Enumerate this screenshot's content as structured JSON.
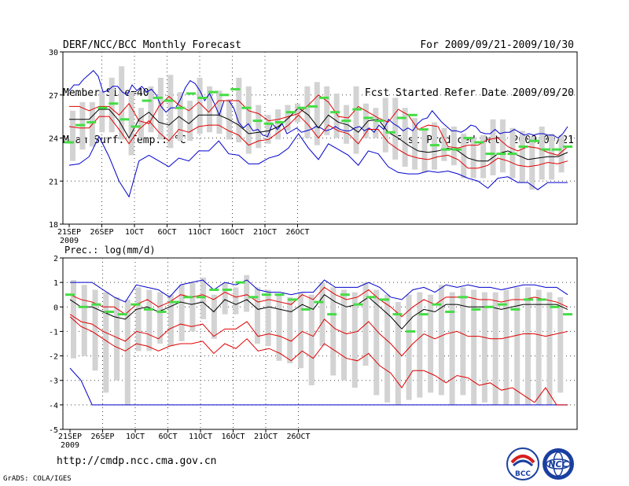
{
  "header": {
    "title": "DERF/NCC/BCC Monthly Forecast",
    "member_size": "Member Size=40",
    "variable": "Mean Surf. Temp.: °C",
    "period": "For 2009/09/21-2009/10/30",
    "refer_date": "Fcst Started Refer Date 2009/09/20",
    "produced_date": "Fcst Produced Date 2009/09/21"
  },
  "footer": {
    "url": "http://cmdp.ncc.cma.gov.cn",
    "credit": "GrADS: COLA/IGES",
    "logo1": "BCC",
    "logo2": "NCC"
  },
  "colors": {
    "box": "#d3d3d3",
    "mean": "#000000",
    "spread": "#e00000",
    "envelope": "#0000cc",
    "marker": "#44dd44",
    "grid": "#444444"
  },
  "chart_data": [
    {
      "type": "line",
      "title": "Mean Surf. Temp.: °C",
      "ylim": [
        18,
        30
      ],
      "yticks": [
        18,
        21,
        24,
        27,
        30
      ],
      "x_start": "2009/09/21",
      "xtick_labels": [
        "21SEP",
        "26SEP",
        "1OCT",
        "6OCT",
        "11OCT",
        "16OCT",
        "21OCT",
        "26OCT"
      ],
      "xtick_year": "2009",
      "series": [
        {
          "name": "max",
          "values": [
            27.3,
            27.7,
            27.7,
            28.1,
            28.4,
            28.7,
            28.3,
            27.2,
            27.3,
            27.6,
            27.6,
            27.2,
            27.0,
            27.7,
            27.3,
            27.6,
            27.2,
            27.4,
            27.0,
            26.2,
            25.8,
            26.1,
            26.1,
            26.7,
            27.5,
            28.0,
            27.8,
            27.3,
            26.6,
            27.1,
            26.4,
            25.6,
            26.6,
            26.6,
            26.1,
            25.1,
            24.7,
            25.0,
            24.5,
            24.6,
            24.2,
            24.1,
            25.0,
            24.6,
            25.0,
            24.3,
            24.5,
            24.7,
            24.4,
            24.5,
            24.6,
            24.8,
            24.7,
            24.5,
            24.6,
            24.8,
            24.6,
            24.5,
            24.5,
            24.7,
            24.8,
            24.5,
            24.7,
            24.4,
            24.9,
            24.6,
            25.3,
            25.0,
            24.8,
            24.5,
            24.7,
            24.5,
            25.0,
            25.3,
            25.4,
            25.9,
            25.5,
            25.1,
            24.8,
            24.5,
            24.5,
            24.4,
            24.6,
            24.9,
            24.8,
            24.4,
            24.3,
            24.3,
            24.6,
            24.3,
            24.4,
            24.4,
            24.6,
            24.4,
            24.2,
            24.3,
            24.2,
            24.3,
            24.3,
            24.2,
            24.2,
            24.0,
            24.3,
            24.8
          ]
        },
        {
          "name": "upper",
          "values": [
            26.2,
            26.2,
            25.9,
            26.2,
            26.2,
            25.6,
            26.4,
            25.2,
            25.0,
            26.2,
            26.9,
            26.3,
            25.9,
            26.5,
            25.8,
            26.6,
            26.6,
            26.6,
            25.9,
            25.7,
            25.2,
            25.3,
            25.5,
            25.7,
            26.3,
            27.0,
            26.5,
            25.5,
            25.4,
            26.2,
            25.8,
            25.4,
            25.1,
            26.0,
            25.6,
            24.6,
            24.9,
            24.8,
            23.4,
            23.3,
            23.5,
            23.5,
            23.9,
            24.0,
            23.4,
            23.1,
            23.4,
            23.3,
            23.0,
            22.8,
            23.4
          ]
        },
        {
          "name": "mean",
          "values": [
            25.3,
            25.3,
            25.3,
            26.0,
            26.0,
            25.2,
            24.0,
            25.3,
            25.8,
            25.1,
            24.9,
            25.5,
            25.0,
            25.6,
            25.6,
            25.6,
            25.3,
            24.9,
            24.3,
            24.4,
            24.5,
            24.8,
            25.4,
            26.1,
            25.6,
            24.7,
            25.6,
            25.1,
            24.9,
            24.4,
            25.2,
            25.3,
            24.4,
            24.0,
            23.5,
            23.1,
            23.0,
            23.1,
            23.3,
            23.1,
            22.6,
            22.4,
            22.4,
            22.9,
            23.1,
            22.8,
            22.5,
            22.6,
            22.7,
            22.7,
            23.0
          ]
        },
        {
          "name": "lower",
          "values": [
            24.8,
            24.7,
            24.7,
            25.5,
            25.5,
            24.6,
            23.6,
            24.6,
            25.2,
            24.4,
            23.8,
            24.6,
            24.4,
            24.8,
            24.9,
            24.9,
            24.5,
            24.2,
            23.5,
            23.8,
            23.9,
            24.4,
            24.9,
            25.6,
            24.9,
            24.0,
            24.9,
            24.5,
            24.3,
            23.6,
            24.6,
            24.6,
            23.7,
            23.2,
            22.8,
            22.6,
            22.5,
            22.7,
            22.8,
            22.5,
            21.9,
            21.9,
            22.1,
            22.6,
            22.4,
            22.1,
            22.0,
            22.1,
            22.3,
            22.2,
            22.4
          ]
        },
        {
          "name": "min",
          "values": [
            22.1,
            22.2,
            22.7,
            24.1,
            22.7,
            21.0,
            19.9,
            22.4,
            22.8,
            22.4,
            22.0,
            22.6,
            22.4,
            23.1,
            23.1,
            23.8,
            22.9,
            22.8,
            22.2,
            22.2,
            22.6,
            22.8,
            23.3,
            24.3,
            23.3,
            22.5,
            23.6,
            23.2,
            22.8,
            22.1,
            23.1,
            22.9,
            22.0,
            21.6,
            21.5,
            21.5,
            21.7,
            21.6,
            21.7,
            21.5,
            21.2,
            21.0,
            20.5,
            21.2,
            21.3,
            20.9,
            20.9,
            20.4,
            20.9,
            20.9,
            20.9
          ]
        },
        {
          "name": "box_top",
          "values": [
            25.9,
            26.5,
            26.5,
            27.3,
            28.2,
            29.0,
            27.2,
            26.1,
            27.6,
            28.2,
            28.4,
            27.2,
            26.6,
            28.2,
            27.6,
            27.3,
            26.7,
            28.2,
            27.6,
            26.3,
            25.6,
            26.0,
            26.3,
            26.4,
            27.6,
            27.9,
            27.6,
            27.1,
            26.3,
            27.6,
            26.4,
            26.1,
            26.8,
            26.8,
            26.1,
            25.4,
            24.6,
            25.1,
            24.7,
            24.8,
            24.3,
            24.0,
            24.2,
            25.3,
            25.3,
            24.7,
            24.5,
            24.1,
            24.8,
            24.3,
            24.2
          ]
        },
        {
          "name": "box_bottom",
          "values": [
            22.4,
            23.2,
            23.4,
            24.4,
            24.4,
            23.9,
            22.8,
            24.0,
            24.4,
            23.9,
            23.3,
            23.8,
            23.8,
            24.3,
            24.4,
            24.3,
            23.9,
            23.7,
            22.9,
            23.3,
            23.6,
            23.9,
            24.5,
            25.1,
            24.0,
            23.5,
            24.2,
            24.0,
            23.6,
            22.9,
            24.0,
            24.0,
            23.0,
            22.5,
            22.0,
            21.8,
            21.6,
            21.8,
            22.4,
            22.1,
            21.2,
            21.2,
            21.2,
            21.4,
            21.6,
            21.2,
            20.9,
            20.4,
            21.1,
            21.1,
            21.6
          ]
        },
        {
          "name": "ensemble_marker",
          "values": [
            23.7,
            24.9,
            25.1,
            26.1,
            26.4,
            25.3,
            24.8,
            26.6,
            26.8,
            26.6,
            26.1,
            27.1,
            26.8,
            27.2,
            27.0,
            27.4,
            26.1,
            25.2,
            25.0,
            25.1,
            25.8,
            26.1,
            26.2,
            26.8,
            25.8,
            25.2,
            26.0,
            25.4,
            25.2,
            24.4,
            25.4,
            25.6,
            24.6,
            23.5,
            23.2,
            23.2,
            24.0,
            23.7,
            22.9,
            22.9,
            22.9,
            23.4,
            23.8,
            23.2,
            23.2,
            23.4
          ]
        }
      ]
    },
    {
      "type": "line",
      "title": "Prec.: log(mm/d)",
      "ylim": [
        -5,
        2
      ],
      "yticks": [
        -5,
        -4,
        -3,
        -2,
        -1,
        0,
        1,
        2
      ],
      "x_start": "2009/09/21",
      "xtick_labels": [
        "21SEP",
        "26SEP",
        "1OCT",
        "6OCT",
        "11OCT",
        "16OCT",
        "21OCT",
        "26OCT"
      ],
      "xtick_year": "2009",
      "series": [
        {
          "name": "max",
          "values": [
            1.0,
            1.0,
            1.0,
            0.7,
            0.4,
            0.2,
            0.9,
            0.8,
            0.7,
            0.4,
            0.9,
            1.0,
            1.1,
            0.7,
            1.0,
            0.9,
            1.1,
            0.7,
            0.6,
            0.6,
            0.5,
            0.6,
            0.6,
            1.1,
            0.8,
            0.8,
            0.8,
            1.0,
            0.8,
            0.4,
            0.3,
            0.7,
            0.8,
            0.6,
            0.9,
            0.8,
            0.9,
            0.8,
            0.8,
            0.7,
            0.8,
            0.9,
            0.9,
            0.8,
            0.8,
            0.5
          ]
        },
        {
          "name": "upper",
          "values": [
            0.5,
            0.3,
            0.2,
            0.0,
            0.0,
            -0.3,
            0.1,
            0.3,
            0.0,
            0.2,
            0.5,
            0.4,
            0.5,
            0.3,
            0.6,
            0.4,
            0.5,
            0.2,
            0.3,
            0.2,
            0.1,
            0.5,
            0.3,
            0.8,
            0.5,
            0.3,
            0.4,
            0.7,
            0.3,
            0.0,
            -0.4,
            0.0,
            0.3,
            0.1,
            0.4,
            0.4,
            0.4,
            0.3,
            0.3,
            0.2,
            0.3,
            0.3,
            0.4,
            0.3,
            0.2,
            0.0
          ]
        },
        {
          "name": "mean",
          "values": [
            0.3,
            0.0,
            0.0,
            -0.2,
            -0.4,
            -0.5,
            -0.1,
            0.0,
            -0.2,
            0.0,
            0.2,
            0.1,
            0.2,
            -0.2,
            0.3,
            0.1,
            0.3,
            -0.1,
            0.0,
            -0.1,
            -0.2,
            0.1,
            -0.1,
            0.5,
            0.2,
            0.0,
            0.1,
            0.4,
            0.0,
            -0.4,
            -0.9,
            -0.4,
            -0.1,
            -0.2,
            0.1,
            0.1,
            0.0,
            0.0,
            0.0,
            -0.1,
            0.0,
            0.1,
            0.1,
            0.1,
            0.1,
            -0.1
          ]
        },
        {
          "name": "lower",
          "values": [
            -0.3,
            -0.6,
            -0.7,
            -1.0,
            -1.2,
            -1.4,
            -1.0,
            -1.1,
            -1.3,
            -0.9,
            -0.7,
            -0.8,
            -0.7,
            -1.2,
            -0.9,
            -0.9,
            -0.6,
            -1.2,
            -1.1,
            -1.2,
            -1.4,
            -1.0,
            -1.2,
            -0.5,
            -0.9,
            -1.1,
            -1.0,
            -0.6,
            -1.1,
            -1.5,
            -2.0,
            -1.5,
            -1.1,
            -1.3,
            -1.1,
            -1.0,
            -1.2,
            -1.2,
            -1.3,
            -1.3,
            -1.2,
            -1.1,
            -1.1,
            -1.2,
            -1.1,
            -1.0
          ]
        },
        {
          "name": "lower2",
          "values": [
            -0.4,
            -0.8,
            -1.0,
            -1.3,
            -1.6,
            -1.8,
            -1.5,
            -1.6,
            -1.8,
            -1.6,
            -1.5,
            -1.5,
            -1.4,
            -1.9,
            -1.5,
            -1.7,
            -1.3,
            -1.8,
            -1.7,
            -1.9,
            -2.2,
            -1.8,
            -2.1,
            -1.5,
            -1.8,
            -2.1,
            -2.2,
            -1.9,
            -2.4,
            -2.7,
            -3.3,
            -2.6,
            -2.6,
            -2.8,
            -3.1,
            -2.8,
            -2.9,
            -3.2,
            -3.1,
            -3.4,
            -3.3,
            -3.6,
            -3.9,
            -3.3,
            -4.0,
            -4.0
          ]
        },
        {
          "name": "min",
          "values": [
            -2.5,
            -3.0,
            -4.0,
            -4.0,
            -4.0,
            -4.0,
            -4.0,
            -4.0,
            -4.0,
            -4.0,
            -4.0,
            -4.0,
            -4.0,
            -4.0,
            -4.0,
            -4.0,
            -4.0,
            -4.0,
            -4.0,
            -4.0,
            -4.0,
            -4.0,
            -4.0,
            -4.0,
            -4.0,
            -4.0,
            -4.0,
            -4.0,
            -4.0,
            -4.0,
            -4.0,
            -4.0,
            -4.0,
            -4.0,
            -4.0,
            -4.0,
            -4.0,
            -4.0,
            -4.0,
            -4.0,
            -4.0,
            -4.0,
            -4.0,
            -4.0,
            -4.0,
            -4.0
          ]
        },
        {
          "name": "box_top",
          "values": [
            1.1,
            0.9,
            0.7,
            0.6,
            0.4,
            0.3,
            0.8,
            0.7,
            0.6,
            0.5,
            0.9,
            1.0,
            1.2,
            0.5,
            1.0,
            0.8,
            1.3,
            0.8,
            0.7,
            0.5,
            0.4,
            0.6,
            0.5,
            1.0,
            0.8,
            0.7,
            0.6,
            1.0,
            0.7,
            0.5,
            0.2,
            0.5,
            0.6,
            0.5,
            0.9,
            0.6,
            0.8,
            0.7,
            0.6,
            0.6,
            0.7,
            0.8,
            0.8,
            0.7,
            0.6,
            0.4
          ]
        },
        {
          "name": "box_bottom",
          "values": [
            -2.1,
            -2.0,
            -2.6,
            -3.5,
            -3.0,
            -4.0,
            -1.8,
            -1.8,
            -1.5,
            -1.6,
            -1.4,
            -1.0,
            -0.5,
            -1.3,
            -0.3,
            -0.3,
            -0.2,
            -1.5,
            -1.6,
            -2.2,
            -2.3,
            -2.5,
            -3.2,
            -1.6,
            -2.8,
            -3.0,
            -3.3,
            -2.4,
            -3.6,
            -3.9,
            -4.0,
            -3.8,
            -3.7,
            -3.5,
            -3.6,
            -4.0,
            -3.6,
            -4.0,
            -3.9,
            -4.0,
            -4.0,
            -4.0,
            -4.0,
            -4.0,
            -4.0,
            -3.5
          ]
        },
        {
          "name": "ensemble_marker",
          "values": [
            0.5,
            0.0,
            0.1,
            -0.2,
            -0.3,
            0.1,
            -0.1,
            -0.2,
            0.2,
            0.4,
            0.4,
            0.7,
            0.7,
            1.0,
            0.4,
            0.5,
            0.5,
            0.3,
            -0.1,
            0.2,
            -0.3,
            0.5,
            0.1,
            0.4,
            0.3,
            -0.3,
            -1.0,
            -0.3,
            0.1,
            -0.2,
            0.4,
            -0.1,
            0.0,
            0.1,
            -0.1,
            0.3,
            0.3,
            0.0,
            -0.3
          ]
        }
      ]
    }
  ]
}
